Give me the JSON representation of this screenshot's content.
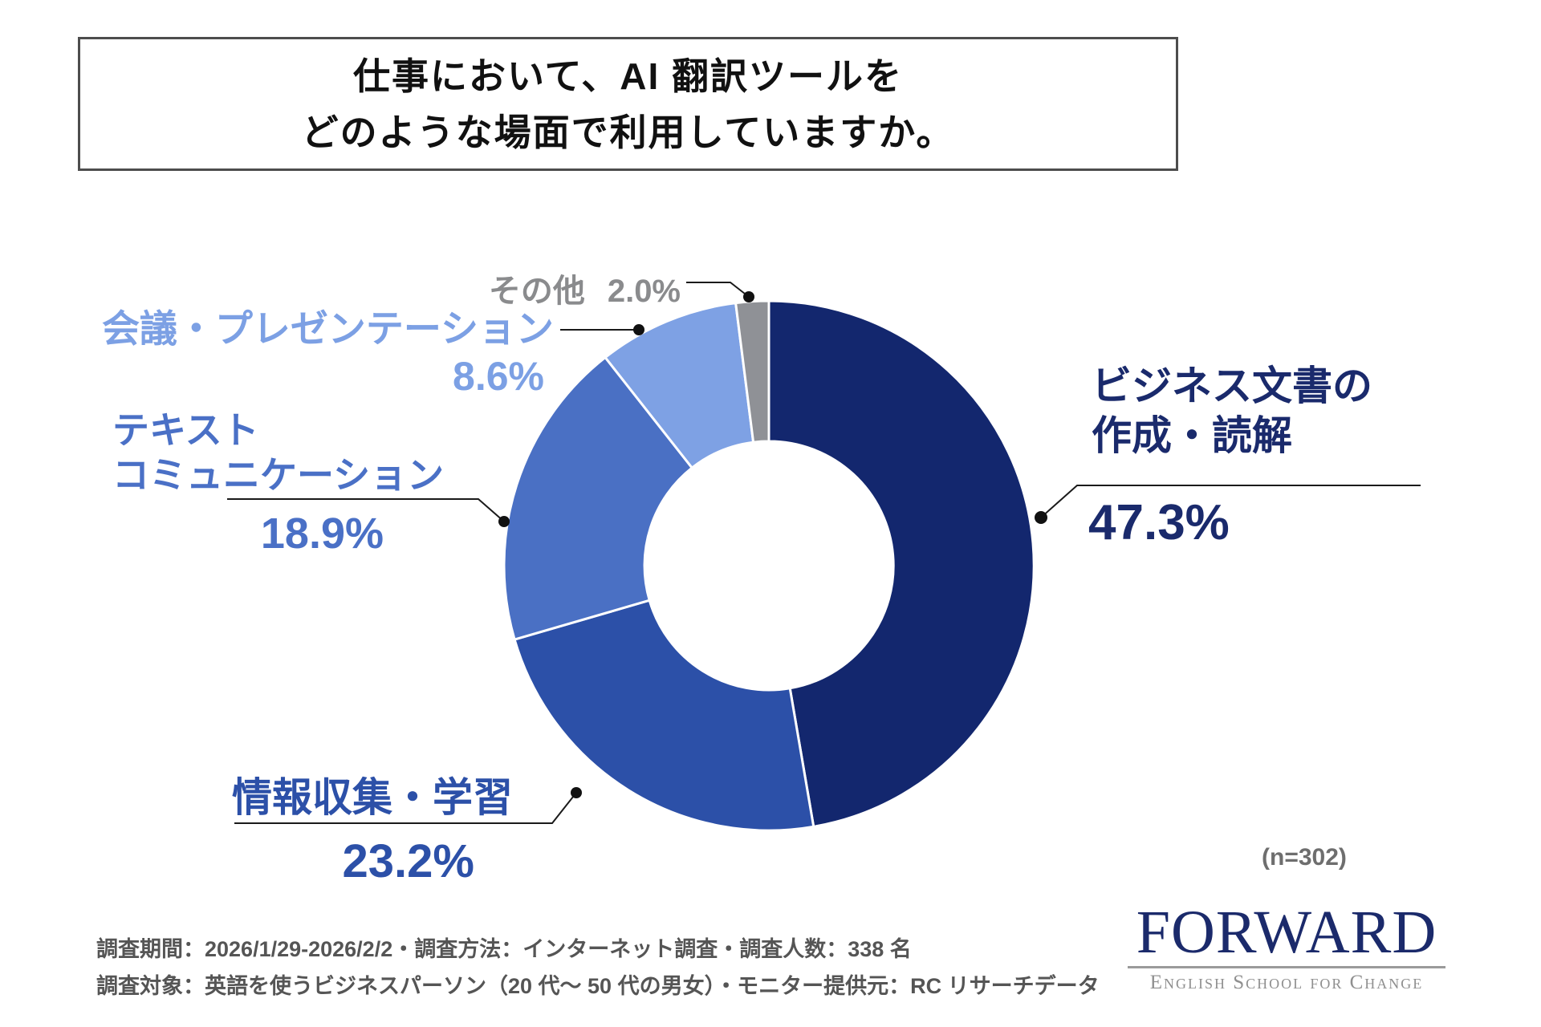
{
  "title": {
    "line1": "仕事において、AI 翻訳ツールを",
    "line2": "どのような場面で利用していますか。"
  },
  "chart_data": {
    "type": "pie",
    "subtype": "donut",
    "title": "仕事において、AI 翻訳ツールをどのような場面で利用していますか。",
    "unit": "%",
    "sample_note": "(n=302)",
    "legend_position": "none",
    "label_style": "outside-leader-lines",
    "start_angle_deg": -90,
    "direction": "clockwise",
    "slices": [
      {
        "name": "ビジネス文書の作成・読解",
        "value": 47.3,
        "pct": "47.3%",
        "color": "#13276e"
      },
      {
        "name": "情報収集・学習",
        "value": 23.2,
        "pct": "23.2%",
        "color": "#2c50a8"
      },
      {
        "name": "テキストコミュニケーション",
        "value": 18.9,
        "pct": "18.9%",
        "color": "#4a70c4"
      },
      {
        "name": "会議・プレゼンテーション",
        "value": 8.6,
        "pct": "8.6%",
        "color": "#7ea1e4"
      },
      {
        "name": "その他",
        "value": 2.0,
        "pct": "2.0%",
        "color": "#8f9196"
      }
    ]
  },
  "labels": {
    "business": {
      "line1": "ビジネス文書の",
      "line2": "作成・読解"
    },
    "info": {
      "line1": "情報収集・学習"
    },
    "text": {
      "line1": "テキスト",
      "line2": "コミュニケーション"
    },
    "meeting": {
      "line1": "会議・プレゼンテーション"
    },
    "other": {
      "line1": "その他"
    }
  },
  "sample_note": "(n=302)",
  "footer": {
    "line1": "調査期間：2026/1/29-2026/2/2・調査方法：インターネット調査・調査人数：338 名",
    "line2": "調査対象：英語を使うビジネスパーソン（20 代〜 50 代の男女）・モニター提供元：RC リサーチデータ"
  },
  "logo": {
    "name": "FORWARD",
    "tagline": "English School for Change"
  }
}
